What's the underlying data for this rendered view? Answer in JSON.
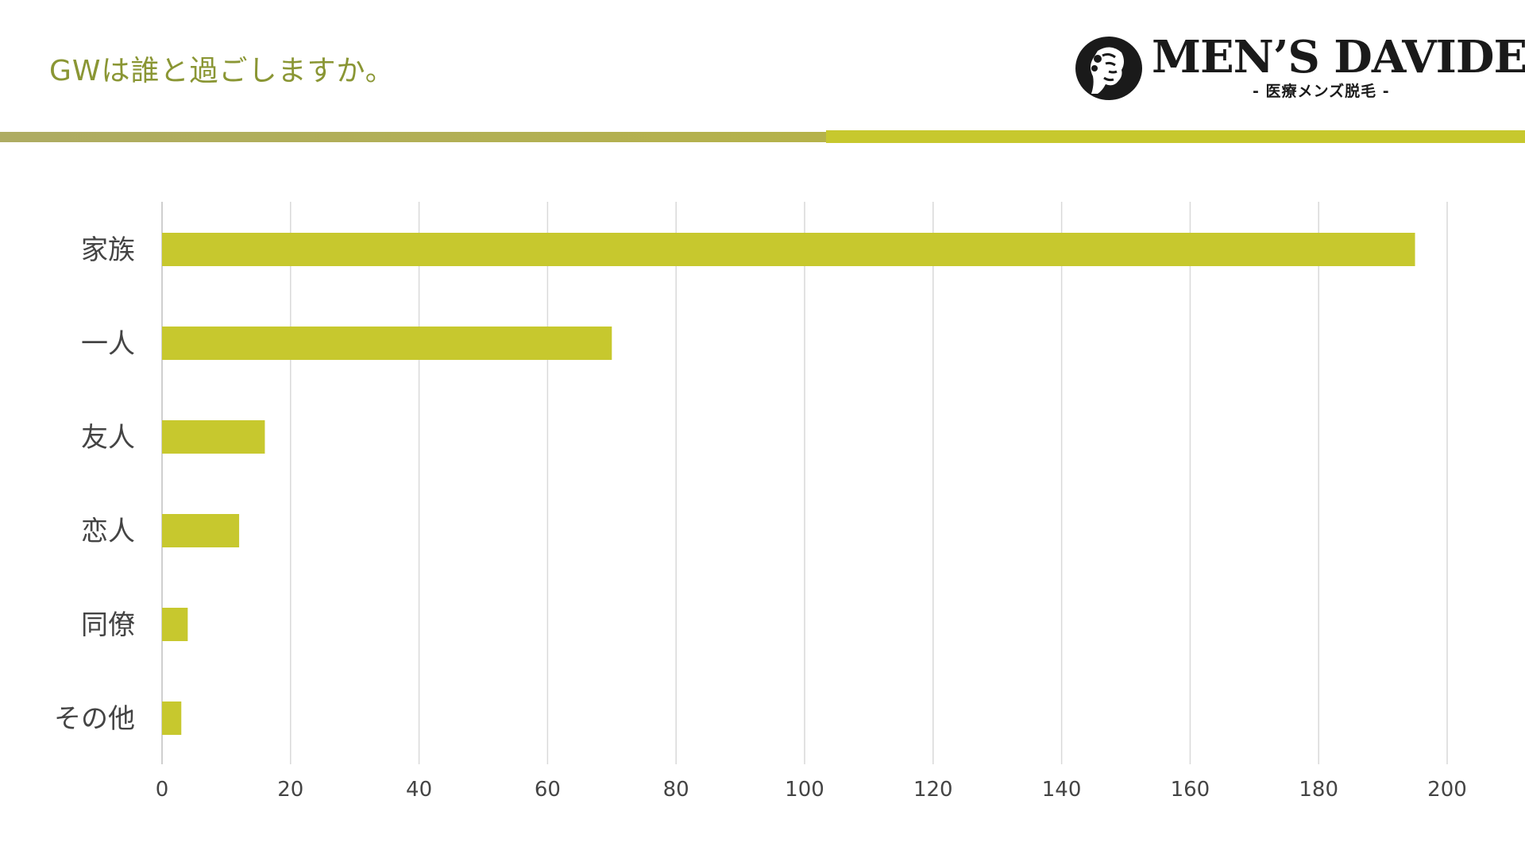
{
  "title": "GWは誰と過ごしますか。",
  "logo": {
    "wordmark": "MEN’S DAVIDE",
    "tagline": "- 医療メンズ脱毛 -"
  },
  "colors": {
    "bar": "#c7c82e",
    "title": "#8a9634",
    "grid": "#d9d9d9",
    "label": "#444444",
    "divider_left": "#b0ae5a",
    "divider_right": "#c7c82e"
  },
  "chart_data": {
    "type": "bar",
    "orientation": "horizontal",
    "categories": [
      "家族",
      "一人",
      "友人",
      "恋人",
      "同僚",
      "その他"
    ],
    "values": [
      195,
      70,
      16,
      12,
      4,
      3
    ],
    "xlim": [
      0,
      200
    ],
    "ticks": [
      0,
      20,
      40,
      60,
      80,
      100,
      120,
      140,
      160,
      180,
      200
    ],
    "grid": "vertical",
    "legend": "none"
  }
}
